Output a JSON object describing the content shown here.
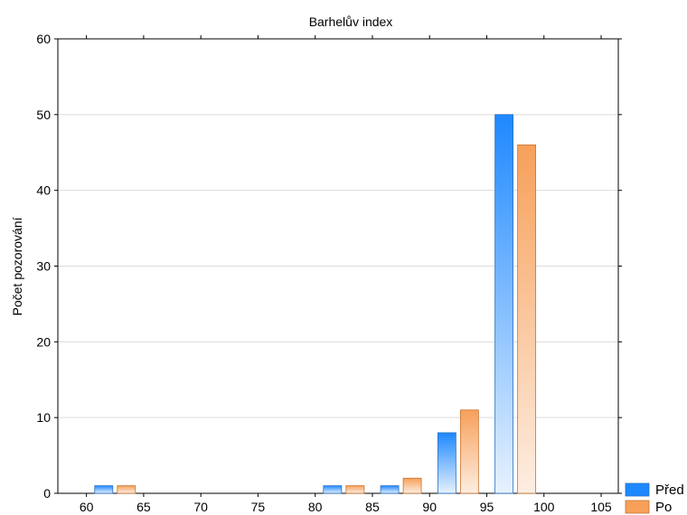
{
  "chart_data": {
    "type": "bar",
    "title": "Barhelův index",
    "xlabel": "",
    "ylabel": "Počet pozorování",
    "xlim": [
      57.5,
      106.5
    ],
    "ylim": [
      0,
      60
    ],
    "x_ticks": [
      "60",
      "65",
      "70",
      "75",
      "80",
      "85",
      "90",
      "95",
      "100",
      "105"
    ],
    "y_ticks": [
      "0",
      "10",
      "20",
      "30",
      "40",
      "50",
      "60"
    ],
    "grid": "horizontal",
    "legend_position": "bottom-right",
    "bin_centers": [
      62.5,
      67.5,
      72.5,
      77.5,
      82.5,
      87.5,
      92.5,
      97.5
    ],
    "series": [
      {
        "name": "Před",
        "color": "#1e88ff",
        "values": [
          1,
          0,
          0,
          0,
          1,
          1,
          8,
          50
        ]
      },
      {
        "name": "Po",
        "color": "#f7a05a",
        "values": [
          1,
          0,
          0,
          0,
          1,
          2,
          11,
          46
        ]
      }
    ]
  }
}
